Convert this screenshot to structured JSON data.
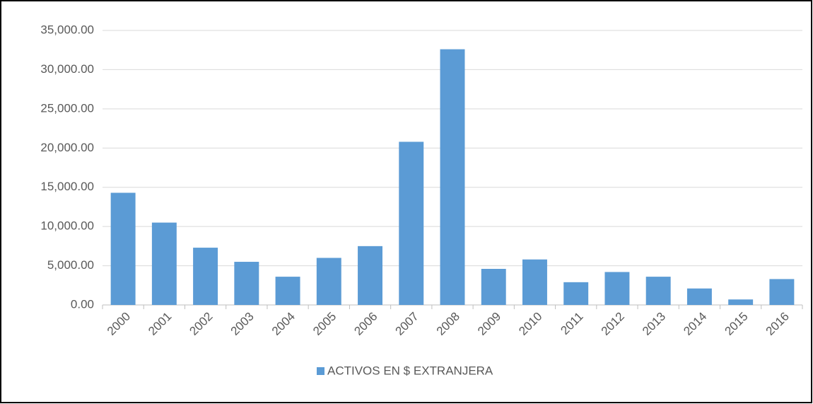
{
  "chart_data": {
    "type": "bar",
    "categories": [
      "2000",
      "2001",
      "2002",
      "2003",
      "2004",
      "2005",
      "2006",
      "2007",
      "2008",
      "2009",
      "2010",
      "2011",
      "2012",
      "2013",
      "2014",
      "2015",
      "2016"
    ],
    "series": [
      {
        "name": "ACTIVOS EN $ EXTRANJERA",
        "color": "#5b9bd5",
        "values": [
          14300,
          10500,
          7300,
          5500,
          3600,
          6000,
          7500,
          20800,
          32600,
          4600,
          5800,
          2900,
          4200,
          3600,
          2100,
          700,
          3300
        ]
      }
    ],
    "ylim": [
      0,
      35000
    ],
    "yticks": [
      {
        "value": 0,
        "label": "0.00"
      },
      {
        "value": 5000,
        "label": "5,000.00"
      },
      {
        "value": 10000,
        "label": "10,000.00"
      },
      {
        "value": 15000,
        "label": "15,000.00"
      },
      {
        "value": 20000,
        "label": "20,000.00"
      },
      {
        "value": 25000,
        "label": "25,000.00"
      },
      {
        "value": 30000,
        "label": "30,000.00"
      },
      {
        "value": 35000,
        "label": "35,000.00"
      }
    ],
    "grid": true,
    "legend": "bottom"
  }
}
